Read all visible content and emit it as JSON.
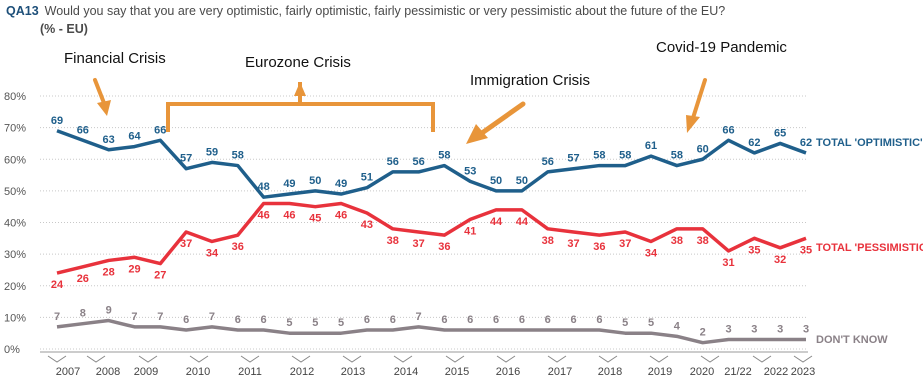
{
  "question": {
    "id": "QA13",
    "text": "Would you say that you are very optimistic, fairly optimistic, fairly pessimistic or very pessimistic about the future of the EU?",
    "subtext": "(% - EU)"
  },
  "colors": {
    "optimistic": "#1f5f8b",
    "pessimistic": "#e8323c",
    "dont_know": "#8a8187",
    "annotation_arrow": "#e8953a",
    "gridline": "#c8c8c8"
  },
  "annotations": [
    {
      "text": "Financial Crisis"
    },
    {
      "text": "Eurozone Crisis"
    },
    {
      "text": "Immigration Crisis"
    },
    {
      "text": "Covid-19 Pandemic"
    }
  ],
  "chart_data": {
    "type": "line",
    "title": "",
    "xlabel": "",
    "ylabel": "",
    "ylim": [
      0,
      80
    ],
    "y_ticks": [
      "0%",
      "10%",
      "20%",
      "30%",
      "40%",
      "50%",
      "60%",
      "70%",
      "80%"
    ],
    "grid": true,
    "legend_placement": "right (line-end labels)",
    "x_tick_labels": [
      "2007",
      "2008",
      "2009",
      "2010",
      "2011",
      "2012",
      "2013",
      "2014",
      "2015",
      "2016",
      "2017",
      "2018",
      "2019",
      "2020",
      "21/22",
      "2022",
      "2023"
    ],
    "series": [
      {
        "name": "TOTAL 'OPTIMISTIC'",
        "values": [
          69,
          66,
          63,
          64,
          66,
          57,
          59,
          58,
          48,
          49,
          50,
          49,
          51,
          56,
          56,
          58,
          53,
          50,
          50,
          56,
          57,
          58,
          58,
          61,
          58,
          60,
          66,
          62,
          65,
          62
        ]
      },
      {
        "name": "TOTAL 'PESSIMISTIC'",
        "values": [
          24,
          26,
          28,
          29,
          27,
          37,
          34,
          36,
          46,
          46,
          45,
          46,
          43,
          38,
          37,
          36,
          41,
          44,
          44,
          38,
          37,
          36,
          37,
          34,
          38,
          38,
          31,
          35,
          32,
          35
        ]
      },
      {
        "name": "DON'T KNOW",
        "values": [
          7,
          8,
          9,
          7,
          7,
          6,
          7,
          6,
          6,
          5,
          5,
          5,
          6,
          6,
          7,
          6,
          6,
          6,
          6,
          6,
          6,
          6,
          5,
          5,
          4,
          2,
          3,
          3,
          3,
          3
        ]
      }
    ]
  }
}
